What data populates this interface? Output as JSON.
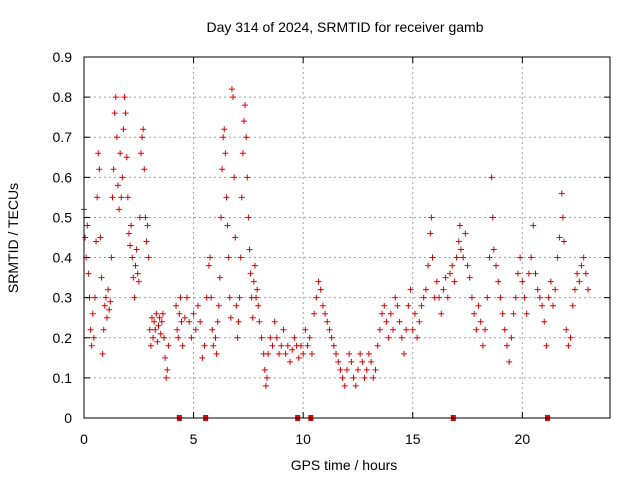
{
  "chart_data": {
    "type": "scatter",
    "title": "Day 314 of 2024, SRMTID for receiver gamb",
    "xlabel": "GPS time / hours",
    "ylabel": "SRMTID / TECUs",
    "xlim": [
      0,
      24
    ],
    "ylim": [
      0,
      0.9
    ],
    "x_ticks": [
      0,
      5,
      10,
      15,
      20
    ],
    "x_tick_labels": [
      "0",
      "5",
      "10",
      "15",
      "20"
    ],
    "y_ticks": [
      0,
      0.1,
      0.2,
      0.3,
      0.4,
      0.5,
      0.6,
      0.7,
      0.8,
      0.9
    ],
    "y_tick_labels": [
      "0",
      "0.1",
      "0.2",
      "0.3",
      "0.4",
      "0.5",
      "0.6",
      "0.7",
      "0.8",
      "0.9"
    ],
    "grid": true,
    "marker": "+",
    "color": "#e00000",
    "series": [
      {
        "name": "SRMTID",
        "points": [
          [
            0.0,
            0.52
          ],
          [
            0.05,
            0.45
          ],
          [
            0.1,
            0.4
          ],
          [
            0.15,
            0.48
          ],
          [
            0.2,
            0.36
          ],
          [
            0.25,
            0.3
          ],
          [
            0.3,
            0.22
          ],
          [
            0.35,
            0.18
          ],
          [
            0.4,
            0.26
          ],
          [
            0.45,
            0.2
          ],
          [
            0.5,
            0.3
          ],
          [
            0.55,
            0.44
          ],
          [
            0.6,
            0.55
          ],
          [
            0.65,
            0.66
          ],
          [
            0.7,
            0.62
          ],
          [
            0.75,
            0.45
          ],
          [
            0.8,
            0.35
          ],
          [
            0.85,
            0.16
          ],
          [
            0.9,
            0.22
          ],
          [
            0.95,
            0.28
          ],
          [
            1.0,
            0.3
          ],
          [
            1.05,
            0.25
          ],
          [
            1.1,
            0.32
          ],
          [
            1.15,
            0.27
          ],
          [
            1.2,
            0.29
          ],
          [
            1.25,
            0.4
          ],
          [
            1.3,
            0.55
          ],
          [
            1.35,
            0.62
          ],
          [
            1.4,
            0.76
          ],
          [
            1.45,
            0.8
          ],
          [
            1.5,
            0.7
          ],
          [
            1.55,
            0.58
          ],
          [
            1.6,
            0.52
          ],
          [
            1.65,
            0.66
          ],
          [
            1.7,
            0.55
          ],
          [
            1.75,
            0.6
          ],
          [
            1.8,
            0.72
          ],
          [
            1.85,
            0.8
          ],
          [
            1.9,
            0.76
          ],
          [
            1.95,
            0.65
          ],
          [
            2.0,
            0.55
          ],
          [
            2.05,
            0.46
          ],
          [
            2.1,
            0.43
          ],
          [
            2.15,
            0.48
          ],
          [
            2.2,
            0.4
          ],
          [
            2.25,
            0.35
          ],
          [
            2.3,
            0.3
          ],
          [
            2.35,
            0.38
          ],
          [
            2.4,
            0.42
          ],
          [
            2.45,
            0.36
          ],
          [
            2.5,
            0.34
          ],
          [
            2.55,
            0.5
          ],
          [
            2.6,
            0.66
          ],
          [
            2.65,
            0.7
          ],
          [
            2.7,
            0.72
          ],
          [
            2.75,
            0.62
          ],
          [
            2.8,
            0.5
          ],
          [
            2.85,
            0.44
          ],
          [
            2.9,
            0.48
          ],
          [
            2.95,
            0.4
          ],
          [
            3.0,
            0.22
          ],
          [
            3.05,
            0.18
          ],
          [
            3.1,
            0.25
          ],
          [
            3.15,
            0.2
          ],
          [
            3.2,
            0.24
          ],
          [
            3.25,
            0.22
          ],
          [
            3.3,
            0.26
          ],
          [
            3.35,
            0.19
          ],
          [
            3.4,
            0.23
          ],
          [
            3.45,
            0.25
          ],
          [
            3.5,
            0.21
          ],
          [
            3.55,
            0.24
          ],
          [
            3.6,
            0.26
          ],
          [
            3.65,
            0.2
          ],
          [
            3.7,
            0.15
          ],
          [
            3.75,
            0.1
          ],
          [
            3.8,
            0.12
          ],
          [
            3.85,
            0.18
          ],
          [
            4.2,
            0.28
          ],
          [
            4.25,
            0.22
          ],
          [
            4.3,
            0.2
          ],
          [
            4.35,
            0.26
          ],
          [
            4.4,
            0.3
          ],
          [
            4.45,
            0.24
          ],
          [
            4.5,
            0.18
          ],
          [
            4.6,
            0.25
          ],
          [
            4.7,
            0.3
          ],
          [
            4.8,
            0.24
          ],
          [
            4.9,
            0.2
          ],
          [
            5.0,
            0.26
          ],
          [
            5.1,
            0.22
          ],
          [
            5.2,
            0.28
          ],
          [
            5.3,
            0.24
          ],
          [
            5.4,
            0.15
          ],
          [
            5.5,
            0.18
          ],
          [
            5.6,
            0.3
          ],
          [
            5.7,
            0.38
          ],
          [
            5.75,
            0.4
          ],
          [
            5.8,
            0.3
          ],
          [
            5.85,
            0.22
          ],
          [
            5.9,
            0.18
          ],
          [
            6.0,
            0.2
          ],
          [
            6.05,
            0.16
          ],
          [
            6.1,
            0.24
          ],
          [
            6.15,
            0.28
          ],
          [
            6.2,
            0.35
          ],
          [
            6.25,
            0.5
          ],
          [
            6.3,
            0.62
          ],
          [
            6.35,
            0.7
          ],
          [
            6.4,
            0.72
          ],
          [
            6.45,
            0.66
          ],
          [
            6.5,
            0.55
          ],
          [
            6.55,
            0.48
          ],
          [
            6.6,
            0.4
          ],
          [
            6.65,
            0.3
          ],
          [
            6.7,
            0.25
          ],
          [
            6.75,
            0.82
          ],
          [
            6.8,
            0.8
          ],
          [
            6.85,
            0.6
          ],
          [
            6.9,
            0.45
          ],
          [
            6.95,
            0.28
          ],
          [
            7.0,
            0.2
          ],
          [
            7.05,
            0.24
          ],
          [
            7.1,
            0.3
          ],
          [
            7.15,
            0.4
          ],
          [
            7.2,
            0.55
          ],
          [
            7.25,
            0.66
          ],
          [
            7.3,
            0.74
          ],
          [
            7.35,
            0.78
          ],
          [
            7.4,
            0.7
          ],
          [
            7.45,
            0.6
          ],
          [
            7.5,
            0.5
          ],
          [
            7.55,
            0.42
          ],
          [
            7.6,
            0.36
          ],
          [
            7.65,
            0.3
          ],
          [
            7.7,
            0.25
          ],
          [
            7.75,
            0.34
          ],
          [
            7.8,
            0.38
          ],
          [
            7.85,
            0.3
          ],
          [
            7.9,
            0.32
          ],
          [
            7.95,
            0.28
          ],
          [
            8.0,
            0.24
          ],
          [
            8.1,
            0.2
          ],
          [
            8.2,
            0.16
          ],
          [
            8.25,
            0.12
          ],
          [
            8.3,
            0.08
          ],
          [
            8.35,
            0.1
          ],
          [
            8.4,
            0.16
          ],
          [
            8.5,
            0.2
          ],
          [
            8.6,
            0.18
          ],
          [
            8.7,
            0.24
          ],
          [
            8.8,
            0.2
          ],
          [
            8.9,
            0.16
          ],
          [
            9.0,
            0.18
          ],
          [
            9.1,
            0.22
          ],
          [
            9.2,
            0.16
          ],
          [
            9.3,
            0.18
          ],
          [
            9.4,
            0.14
          ],
          [
            9.5,
            0.17
          ],
          [
            9.6,
            0.2
          ],
          [
            9.7,
            0.18
          ],
          [
            9.8,
            0.15
          ],
          [
            9.9,
            0.18
          ],
          [
            10.0,
            0.16
          ],
          [
            10.1,
            0.22
          ],
          [
            10.2,
            0.18
          ],
          [
            10.3,
            0.2
          ],
          [
            10.4,
            0.16
          ],
          [
            10.5,
            0.26
          ],
          [
            10.6,
            0.3
          ],
          [
            10.7,
            0.34
          ],
          [
            10.8,
            0.32
          ],
          [
            10.9,
            0.28
          ],
          [
            11.0,
            0.26
          ],
          [
            11.1,
            0.24
          ],
          [
            11.2,
            0.22
          ],
          [
            11.3,
            0.2
          ],
          [
            11.4,
            0.18
          ],
          [
            11.5,
            0.16
          ],
          [
            11.6,
            0.14
          ],
          [
            11.7,
            0.12
          ],
          [
            11.8,
            0.1
          ],
          [
            11.9,
            0.08
          ],
          [
            12.0,
            0.12
          ],
          [
            12.1,
            0.16
          ],
          [
            12.2,
            0.14
          ],
          [
            12.3,
            0.1
          ],
          [
            12.4,
            0.08
          ],
          [
            12.5,
            0.12
          ],
          [
            12.6,
            0.16
          ],
          [
            12.7,
            0.14
          ],
          [
            12.8,
            0.1
          ],
          [
            12.9,
            0.12
          ],
          [
            13.0,
            0.16
          ],
          [
            13.1,
            0.14
          ],
          [
            13.2,
            0.1
          ],
          [
            13.3,
            0.12
          ],
          [
            13.4,
            0.18
          ],
          [
            13.5,
            0.22
          ],
          [
            13.6,
            0.26
          ],
          [
            13.7,
            0.28
          ],
          [
            13.8,
            0.24
          ],
          [
            13.9,
            0.2
          ],
          [
            14.0,
            0.26
          ],
          [
            14.1,
            0.22
          ],
          [
            14.2,
            0.3
          ],
          [
            14.3,
            0.28
          ],
          [
            14.4,
            0.24
          ],
          [
            14.5,
            0.2
          ],
          [
            14.6,
            0.16
          ],
          [
            14.7,
            0.22
          ],
          [
            14.8,
            0.28
          ],
          [
            14.9,
            0.32
          ],
          [
            15.0,
            0.22
          ],
          [
            15.1,
            0.26
          ],
          [
            15.2,
            0.2
          ],
          [
            15.3,
            0.24
          ],
          [
            15.4,
            0.28
          ],
          [
            15.5,
            0.3
          ],
          [
            15.6,
            0.32
          ],
          [
            15.7,
            0.38
          ],
          [
            15.8,
            0.46
          ],
          [
            15.85,
            0.5
          ],
          [
            15.9,
            0.4
          ],
          [
            16.0,
            0.3
          ],
          [
            16.1,
            0.34
          ],
          [
            16.2,
            0.3
          ],
          [
            16.3,
            0.26
          ],
          [
            16.4,
            0.32
          ],
          [
            16.5,
            0.35
          ],
          [
            16.6,
            0.3
          ],
          [
            16.7,
            0.36
          ],
          [
            16.8,
            0.38
          ],
          [
            16.9,
            0.34
          ],
          [
            17.0,
            0.4
          ],
          [
            17.1,
            0.44
          ],
          [
            17.15,
            0.48
          ],
          [
            17.2,
            0.42
          ],
          [
            17.3,
            0.4
          ],
          [
            17.4,
            0.46
          ],
          [
            17.5,
            0.38
          ],
          [
            17.6,
            0.35
          ],
          [
            17.7,
            0.3
          ],
          [
            17.8,
            0.26
          ],
          [
            17.9,
            0.22
          ],
          [
            18.0,
            0.28
          ],
          [
            18.1,
            0.24
          ],
          [
            18.2,
            0.18
          ],
          [
            18.3,
            0.22
          ],
          [
            18.4,
            0.3
          ],
          [
            18.5,
            0.4
          ],
          [
            18.6,
            0.6
          ],
          [
            18.65,
            0.5
          ],
          [
            18.7,
            0.42
          ],
          [
            18.8,
            0.38
          ],
          [
            18.9,
            0.34
          ],
          [
            19.0,
            0.3
          ],
          [
            19.1,
            0.26
          ],
          [
            19.2,
            0.22
          ],
          [
            19.3,
            0.18
          ],
          [
            19.4,
            0.14
          ],
          [
            19.5,
            0.2
          ],
          [
            19.6,
            0.26
          ],
          [
            19.7,
            0.3
          ],
          [
            19.8,
            0.36
          ],
          [
            19.9,
            0.4
          ],
          [
            20.0,
            0.34
          ],
          [
            20.1,
            0.3
          ],
          [
            20.2,
            0.26
          ],
          [
            20.3,
            0.36
          ],
          [
            20.4,
            0.4
          ],
          [
            20.5,
            0.48
          ],
          [
            20.6,
            0.36
          ],
          [
            20.7,
            0.32
          ],
          [
            20.8,
            0.3
          ],
          [
            20.9,
            0.28
          ],
          [
            21.0,
            0.24
          ],
          [
            21.1,
            0.18
          ],
          [
            21.2,
            0.3
          ],
          [
            21.3,
            0.34
          ],
          [
            21.4,
            0.28
          ],
          [
            21.5,
            0.32
          ],
          [
            21.6,
            0.4
          ],
          [
            21.7,
            0.45
          ],
          [
            21.8,
            0.56
          ],
          [
            21.85,
            0.5
          ],
          [
            21.9,
            0.44
          ],
          [
            22.0,
            0.22
          ],
          [
            22.1,
            0.18
          ],
          [
            22.2,
            0.2
          ],
          [
            22.3,
            0.28
          ],
          [
            22.4,
            0.32
          ],
          [
            22.5,
            0.36
          ],
          [
            22.6,
            0.34
          ],
          [
            22.7,
            0.38
          ],
          [
            22.8,
            0.4
          ],
          [
            22.9,
            0.36
          ],
          [
            23.0,
            0.32
          ]
        ]
      }
    ],
    "gap_markers_x": [
      4.35,
      5.55,
      9.75,
      10.35,
      16.85,
      21.15
    ]
  }
}
